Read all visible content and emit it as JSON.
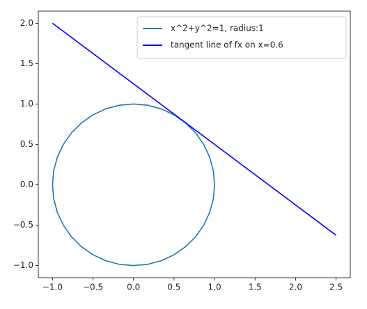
{
  "chart_data": {
    "type": "line",
    "series": [
      {
        "name": "x^2+y^2=1, radius:1",
        "color": "#1f77b4",
        "x": [
          1,
          0.985,
          0.94,
          0.866,
          0.766,
          0.643,
          0.5,
          0.342,
          0.174,
          0,
          -0.174,
          -0.342,
          -0.5,
          -0.643,
          -0.766,
          -0.866,
          -0.94,
          -0.985,
          -1,
          -0.985,
          -0.94,
          -0.866,
          -0.766,
          -0.643,
          -0.5,
          -0.342,
          -0.174,
          0,
          0.174,
          0.342,
          0.5,
          0.643,
          0.766,
          0.866,
          0.94,
          0.985,
          1
        ],
        "values": [
          0,
          0.174,
          0.342,
          0.5,
          0.643,
          0.766,
          0.866,
          0.94,
          0.985,
          1,
          0.985,
          0.94,
          0.866,
          0.766,
          0.643,
          0.5,
          0.342,
          0.174,
          0,
          -0.174,
          -0.342,
          -0.5,
          -0.643,
          -0.766,
          -0.866,
          -0.94,
          -0.985,
          -1,
          -0.985,
          -0.94,
          -0.866,
          -0.766,
          -0.643,
          -0.5,
          -0.342,
          -0.174,
          0
        ]
      },
      {
        "name": "tangent line of fx on x=0.6",
        "color": "#0000ff",
        "x": [
          -1,
          2.5
        ],
        "values": [
          2,
          -0.625
        ]
      }
    ],
    "xlim": [
      -1.175,
      2.675
    ],
    "ylim": [
      -1.15,
      2.15
    ],
    "xticks": [
      {
        "value": -1,
        "label": "−1.0"
      },
      {
        "value": -0.5,
        "label": "−0.5"
      },
      {
        "value": 0,
        "label": "0.0"
      },
      0.5,
      {
        "value": 1,
        "label": "1.0"
      },
      1.5,
      {
        "value": 2,
        "label": "2.0"
      },
      2.5
    ],
    "yticks": [
      {
        "value": -1,
        "label": "−1.0"
      },
      {
        "value": -0.5,
        "label": "−0.5"
      },
      {
        "value": 0,
        "label": "0.0"
      },
      0.5,
      {
        "value": 1,
        "label": "1.0"
      },
      1.5,
      {
        "value": 2,
        "label": "2.0"
      }
    ],
    "grid": false,
    "legend": "upper right"
  }
}
